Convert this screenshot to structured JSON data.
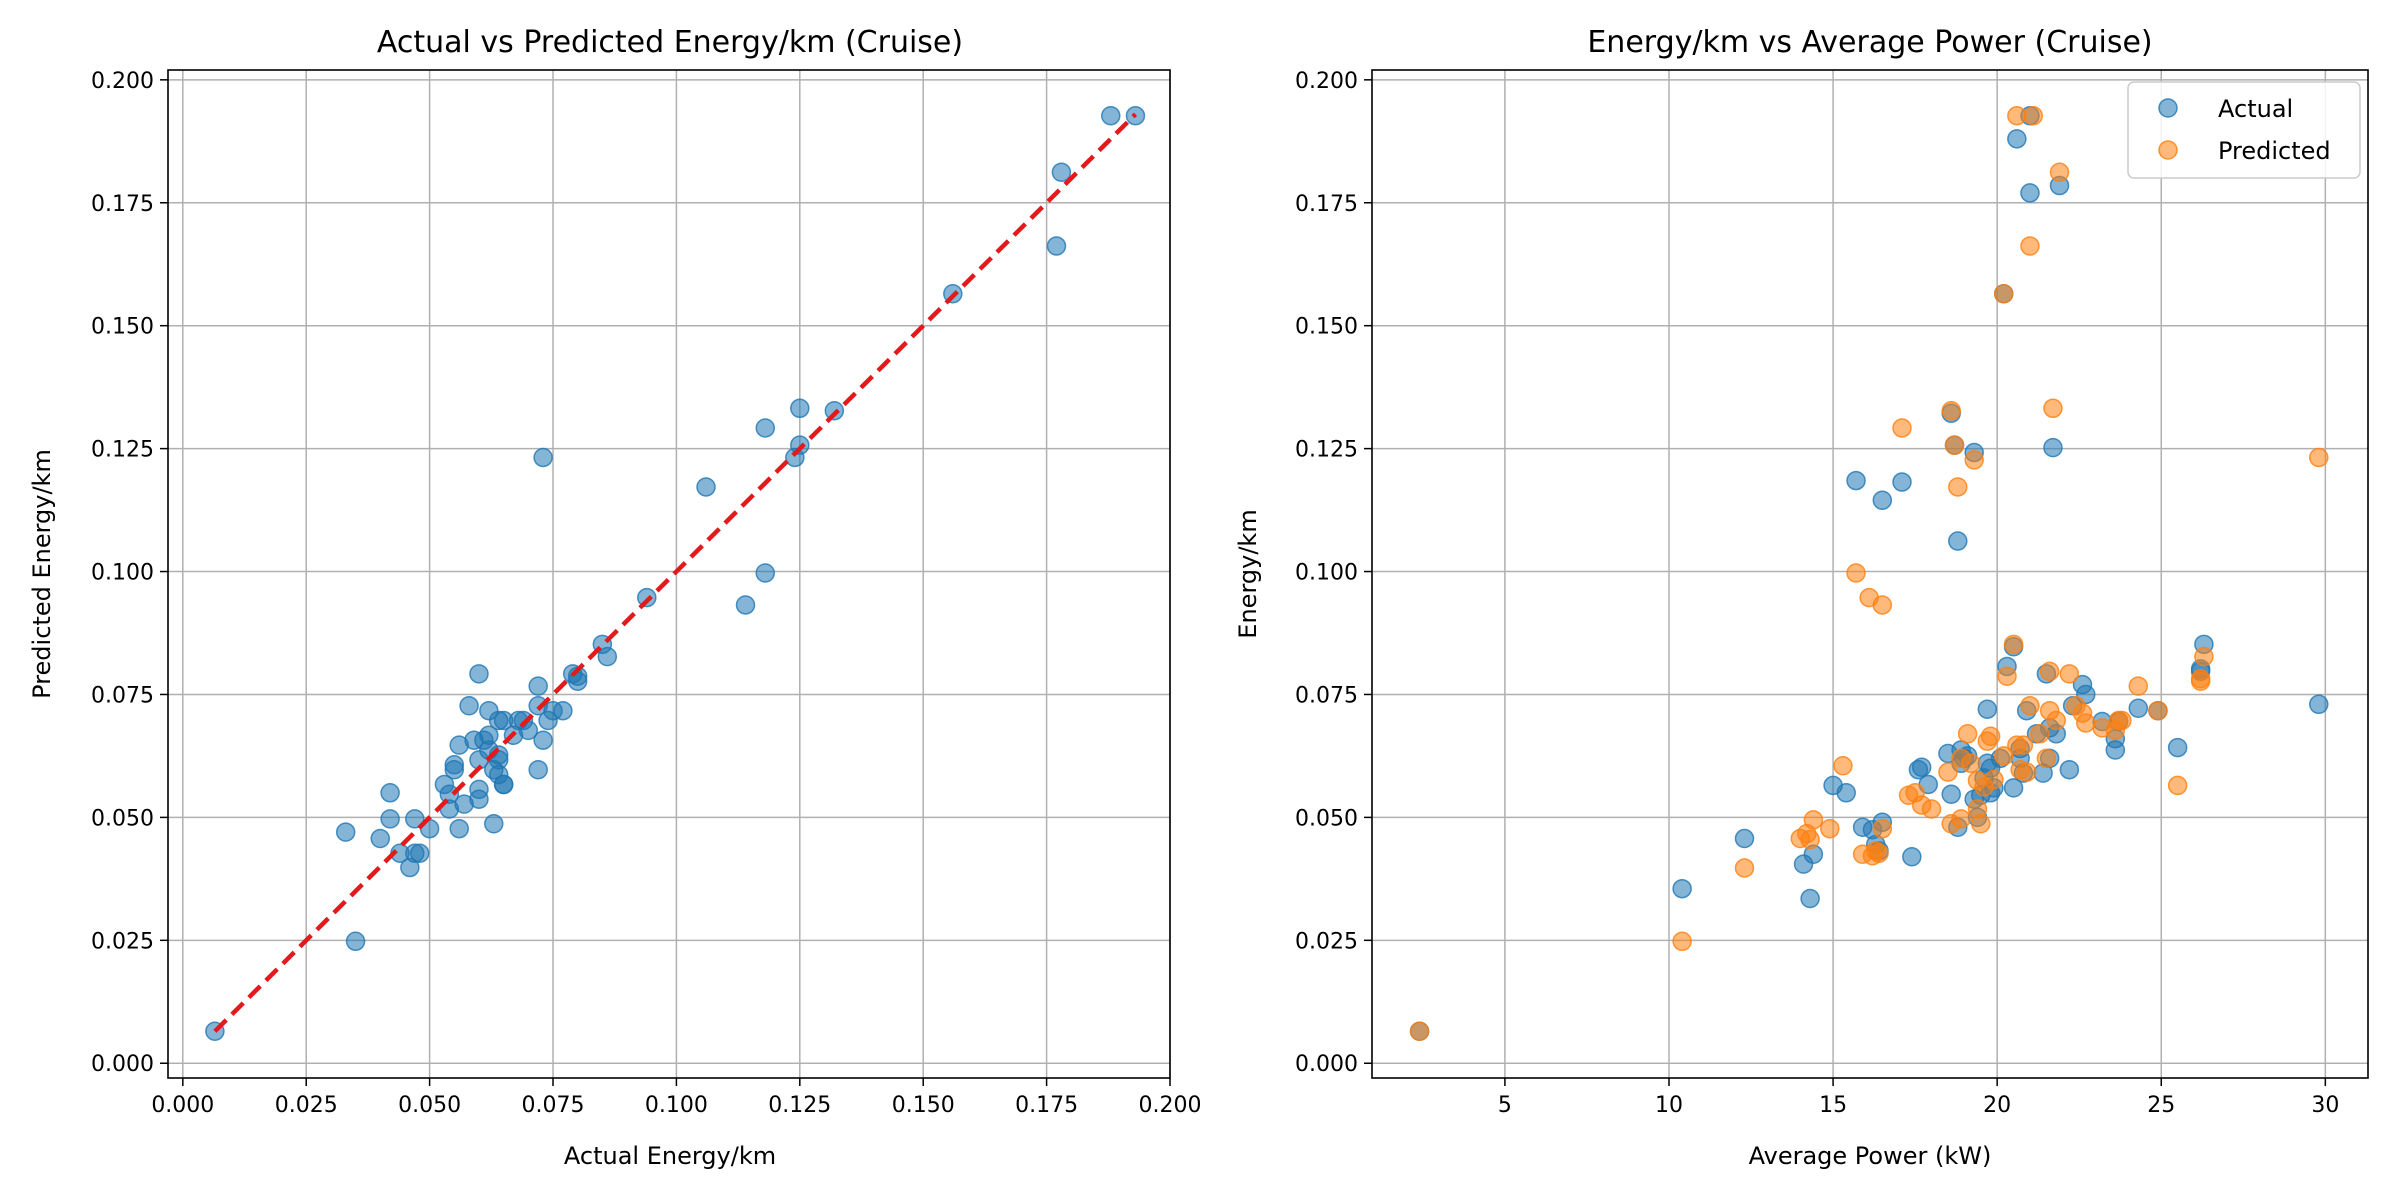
{
  "colors": {
    "actual": "#1f77b4",
    "predicted": "#ff7f0e",
    "identity_line": "#e31a1c",
    "grid": "#b0b0b0"
  },
  "chart_data": [
    {
      "type": "scatter",
      "title": "Actual vs Predicted Energy/km (Cruise)",
      "xlabel": "Actual Energy/km",
      "ylabel": "Predicted Energy/km",
      "xlim": [
        -0.003,
        0.2
      ],
      "ylim": [
        -0.003,
        0.202
      ],
      "xticks": [
        0.0,
        0.025,
        0.05,
        0.075,
        0.1,
        0.125,
        0.15,
        0.175,
        0.2
      ],
      "xtick_labels": [
        "0.000",
        "0.025",
        "0.050",
        "0.075",
        "0.100",
        "0.125",
        "0.150",
        "0.175",
        "0.200"
      ],
      "yticks": [
        0.0,
        0.025,
        0.05,
        0.075,
        0.1,
        0.125,
        0.15,
        0.175,
        0.2
      ],
      "ytick_labels": [
        "0.000",
        "0.025",
        "0.050",
        "0.075",
        "0.100",
        "0.125",
        "0.150",
        "0.175",
        "0.200"
      ],
      "grid": true,
      "reference_line": {
        "style": "dashed",
        "x": [
          0.0065,
          0.193
        ],
        "y": [
          0.0065,
          0.193
        ]
      },
      "series": [
        {
          "color": "#1f77b4",
          "points": [
            [
              0.0065,
              0.0065
            ],
            [
              0.033,
              0.047
            ],
            [
              0.035,
              0.0248
            ],
            [
              0.04,
              0.0457
            ],
            [
              0.042,
              0.055
            ],
            [
              0.042,
              0.0497
            ],
            [
              0.044,
              0.0427
            ],
            [
              0.046,
              0.0398
            ],
            [
              0.047,
              0.0427
            ],
            [
              0.047,
              0.0497
            ],
            [
              0.048,
              0.0427
            ],
            [
              0.05,
              0.0477
            ],
            [
              0.053,
              0.0567
            ],
            [
              0.054,
              0.0517
            ],
            [
              0.054,
              0.0547
            ],
            [
              0.055,
              0.0597
            ],
            [
              0.055,
              0.0607
            ],
            [
              0.056,
              0.0647
            ],
            [
              0.056,
              0.0477
            ],
            [
              0.057,
              0.0527
            ],
            [
              0.058,
              0.0727
            ],
            [
              0.059,
              0.0657
            ],
            [
              0.06,
              0.0557
            ],
            [
              0.06,
              0.0537
            ],
            [
              0.06,
              0.0617
            ],
            [
              0.06,
              0.0792
            ],
            [
              0.061,
              0.0657
            ],
            [
              0.062,
              0.0717
            ],
            [
              0.062,
              0.0637
            ],
            [
              0.062,
              0.0667
            ],
            [
              0.063,
              0.0597
            ],
            [
              0.063,
              0.0487
            ],
            [
              0.064,
              0.0627
            ],
            [
              0.064,
              0.0697
            ],
            [
              0.064,
              0.0587
            ],
            [
              0.064,
              0.0617
            ],
            [
              0.065,
              0.0567
            ],
            [
              0.065,
              0.0567
            ],
            [
              0.065,
              0.0697
            ],
            [
              0.067,
              0.0667
            ],
            [
              0.068,
              0.0697
            ],
            [
              0.069,
              0.0697
            ],
            [
              0.07,
              0.0677
            ],
            [
              0.072,
              0.0767
            ],
            [
              0.072,
              0.0727
            ],
            [
              0.072,
              0.0597
            ],
            [
              0.073,
              0.0657
            ],
            [
              0.073,
              0.1232
            ],
            [
              0.074,
              0.0697
            ],
            [
              0.075,
              0.0717
            ],
            [
              0.077,
              0.0717
            ],
            [
              0.079,
              0.0792
            ],
            [
              0.08,
              0.0787
            ],
            [
              0.08,
              0.0777
            ],
            [
              0.085,
              0.0852
            ],
            [
              0.086,
              0.0827
            ],
            [
              0.094,
              0.0947
            ],
            [
              0.106,
              0.1172
            ],
            [
              0.114,
              0.0932
            ],
            [
              0.118,
              0.1292
            ],
            [
              0.118,
              0.0997
            ],
            [
              0.125,
              0.1332
            ],
            [
              0.124,
              0.1232
            ],
            [
              0.125,
              0.1257
            ],
            [
              0.132,
              0.1327
            ],
            [
              0.156,
              0.1565
            ],
            [
              0.177,
              0.1662
            ],
            [
              0.178,
              0.1812
            ],
            [
              0.188,
              0.1927
            ],
            [
              0.193,
              0.1927
            ]
          ]
        }
      ]
    },
    {
      "type": "scatter",
      "title": "Energy/km vs Average Power (Cruise)",
      "xlabel": "Average Power (kW)",
      "ylabel": "Energy/km",
      "xlim": [
        0.95,
        31.3
      ],
      "ylim": [
        -0.003,
        0.202
      ],
      "xticks": [
        5,
        10,
        15,
        20,
        25,
        30
      ],
      "xtick_labels": [
        "5",
        "10",
        "15",
        "20",
        "25",
        "30"
      ],
      "yticks": [
        0.0,
        0.025,
        0.05,
        0.075,
        0.1,
        0.125,
        0.15,
        0.175,
        0.2
      ],
      "ytick_labels": [
        "0.000",
        "0.025",
        "0.050",
        "0.075",
        "0.100",
        "0.125",
        "0.150",
        "0.175",
        "0.200"
      ],
      "grid": true,
      "legend": {
        "position": "top-right",
        "entries": [
          "Actual",
          "Predicted"
        ]
      },
      "series": [
        {
          "name": "Actual",
          "color": "#1f77b4",
          "points": [
            [
              2.4,
              0.0065
            ],
            [
              10.4,
              0.0355
            ],
            [
              12.3,
              0.0457
            ],
            [
              14.1,
              0.0405
            ],
            [
              14.3,
              0.0335
            ],
            [
              14.4,
              0.0425
            ],
            [
              15.0,
              0.0565
            ],
            [
              15.4,
              0.055
            ],
            [
              15.7,
              0.1185
            ],
            [
              15.9,
              0.048
            ],
            [
              16.2,
              0.0475
            ],
            [
              16.3,
              0.0445
            ],
            [
              16.4,
              0.0432
            ],
            [
              16.5,
              0.049
            ],
            [
              16.5,
              0.1145
            ],
            [
              17.1,
              0.1182
            ],
            [
              17.4,
              0.042
            ],
            [
              17.6,
              0.0597
            ],
            [
              17.7,
              0.0602
            ],
            [
              17.9,
              0.0567
            ],
            [
              18.5,
              0.063
            ],
            [
              18.6,
              0.0547
            ],
            [
              18.6,
              0.1322
            ],
            [
              18.7,
              0.1257
            ],
            [
              18.8,
              0.1062
            ],
            [
              18.8,
              0.048
            ],
            [
              18.9,
              0.061
            ],
            [
              18.9,
              0.0637
            ],
            [
              19.0,
              0.062
            ],
            [
              19.1,
              0.0625
            ],
            [
              19.3,
              0.1242
            ],
            [
              19.3,
              0.0537
            ],
            [
              19.4,
              0.05
            ],
            [
              19.5,
              0.0545
            ],
            [
              19.6,
              0.058
            ],
            [
              19.7,
              0.072
            ],
            [
              19.7,
              0.061
            ],
            [
              19.8,
              0.06
            ],
            [
              19.8,
              0.055
            ],
            [
              19.9,
              0.056
            ],
            [
              20.1,
              0.062
            ],
            [
              20.2,
              0.1565
            ],
            [
              20.3,
              0.0807
            ],
            [
              20.5,
              0.0847
            ],
            [
              20.5,
              0.056
            ],
            [
              20.6,
              0.188
            ],
            [
              20.7,
              0.062
            ],
            [
              20.7,
              0.064
            ],
            [
              20.8,
              0.059
            ],
            [
              20.9,
              0.0717
            ],
            [
              21.0,
              0.177
            ],
            [
              21.0,
              0.1927
            ],
            [
              21.2,
              0.067
            ],
            [
              21.4,
              0.059
            ],
            [
              21.5,
              0.0792
            ],
            [
              21.6,
              0.0682
            ],
            [
              21.6,
              0.062
            ],
            [
              21.7,
              0.1252
            ],
            [
              21.8,
              0.067
            ],
            [
              21.9,
              0.1785
            ],
            [
              22.2,
              0.0597
            ],
            [
              22.3,
              0.0727
            ],
            [
              22.6,
              0.077
            ],
            [
              22.7,
              0.075
            ],
            [
              23.2,
              0.0695
            ],
            [
              23.6,
              0.0637
            ],
            [
              23.6,
              0.066
            ],
            [
              23.7,
              0.0695
            ],
            [
              24.3,
              0.0722
            ],
            [
              24.9,
              0.0717
            ],
            [
              25.5,
              0.0642
            ],
            [
              26.2,
              0.0802
            ],
            [
              26.2,
              0.0797
            ],
            [
              26.3,
              0.0852
            ],
            [
              29.8,
              0.073
            ]
          ]
        },
        {
          "name": "Predicted",
          "color": "#ff7f0e",
          "points": [
            [
              2.4,
              0.0065
            ],
            [
              10.4,
              0.0248
            ],
            [
              12.3,
              0.0397
            ],
            [
              14.0,
              0.0457
            ],
            [
              14.2,
              0.0467
            ],
            [
              14.3,
              0.0455
            ],
            [
              14.4,
              0.0495
            ],
            [
              14.9,
              0.0477
            ],
            [
              15.3,
              0.0605
            ],
            [
              15.7,
              0.0997
            ],
            [
              15.9,
              0.0425
            ],
            [
              16.1,
              0.0947
            ],
            [
              16.2,
              0.0422
            ],
            [
              16.3,
              0.0432
            ],
            [
              16.4,
              0.0427
            ],
            [
              16.5,
              0.0932
            ],
            [
              16.5,
              0.0477
            ],
            [
              17.1,
              0.1292
            ],
            [
              17.3,
              0.0545
            ],
            [
              17.5,
              0.055
            ],
            [
              17.7,
              0.0525
            ],
            [
              18.0,
              0.0517
            ],
            [
              18.5,
              0.0592
            ],
            [
              18.6,
              0.1327
            ],
            [
              18.6,
              0.0487
            ],
            [
              18.7,
              0.1257
            ],
            [
              18.8,
              0.1172
            ],
            [
              18.9,
              0.062
            ],
            [
              18.9,
              0.0497
            ],
            [
              19.1,
              0.067
            ],
            [
              19.2,
              0.061
            ],
            [
              19.3,
              0.1227
            ],
            [
              19.4,
              0.0575
            ],
            [
              19.4,
              0.0517
            ],
            [
              19.5,
              0.0487
            ],
            [
              19.6,
              0.0562
            ],
            [
              19.7,
              0.0655
            ],
            [
              19.8,
              0.0665
            ],
            [
              19.9,
              0.0577
            ],
            [
              20.2,
              0.0625
            ],
            [
              20.2,
              0.1565
            ],
            [
              20.3,
              0.0787
            ],
            [
              20.5,
              0.0852
            ],
            [
              20.6,
              0.0647
            ],
            [
              20.6,
              0.1927
            ],
            [
              20.7,
              0.0597
            ],
            [
              20.8,
              0.0647
            ],
            [
              20.9,
              0.0592
            ],
            [
              21.0,
              0.0727
            ],
            [
              21.0,
              0.1662
            ],
            [
              21.1,
              0.1927
            ],
            [
              21.3,
              0.067
            ],
            [
              21.5,
              0.062
            ],
            [
              21.6,
              0.0797
            ],
            [
              21.6,
              0.0717
            ],
            [
              21.7,
              0.1332
            ],
            [
              21.8,
              0.0697
            ],
            [
              21.9,
              0.1812
            ],
            [
              22.2,
              0.0792
            ],
            [
              22.4,
              0.0727
            ],
            [
              22.6,
              0.0712
            ],
            [
              22.7,
              0.0692
            ],
            [
              23.2,
              0.0682
            ],
            [
              23.6,
              0.0677
            ],
            [
              23.7,
              0.0697
            ],
            [
              23.8,
              0.0697
            ],
            [
              24.3,
              0.0767
            ],
            [
              24.9,
              0.0717
            ],
            [
              25.5,
              0.0565
            ],
            [
              26.2,
              0.0782
            ],
            [
              26.2,
              0.0777
            ],
            [
              26.3,
              0.0827
            ],
            [
              29.8,
              0.1232
            ]
          ]
        }
      ]
    }
  ]
}
